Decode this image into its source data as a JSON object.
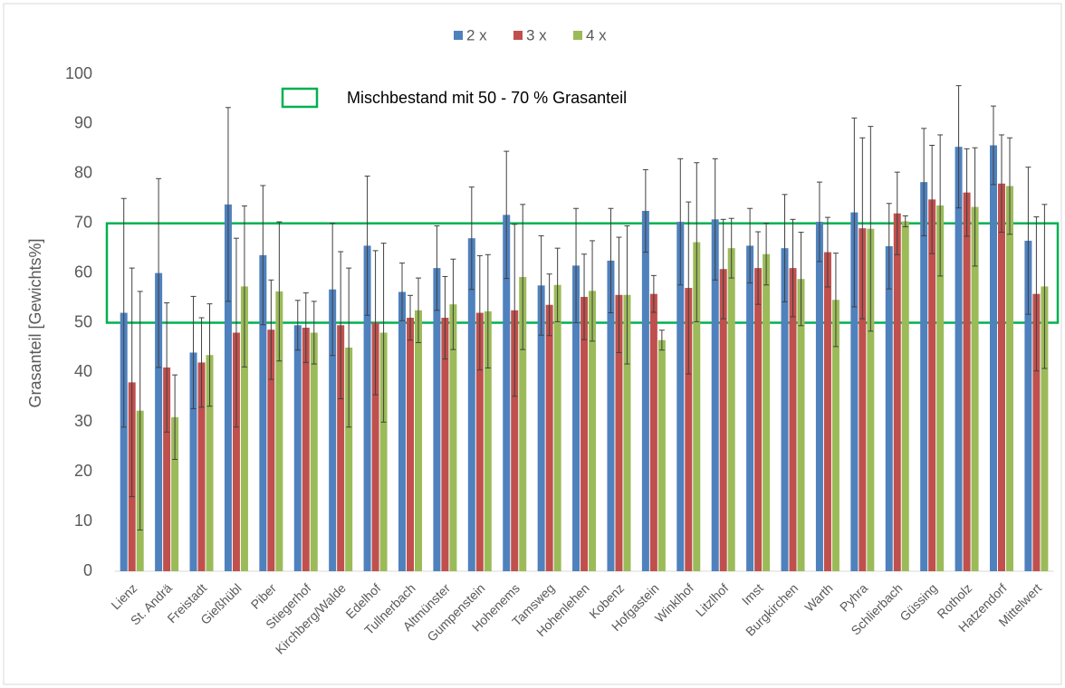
{
  "chart_data": {
    "type": "bar",
    "y_label": "Grasanteil [Gewichts%]",
    "categories": [
      "Lienz",
      "St. Andrä",
      "Freistadt",
      "Gießhübl",
      "Piber",
      "Stiegerhof",
      "Kirchberg/Walde",
      "Edelhof",
      "Tullnerbach",
      "Altmünster",
      "Gumpenstein",
      "Hohenems",
      "Tamsweg",
      "Hohenlehen",
      "Kobenz",
      "Hofgastein",
      "Winklhof",
      "Litzlhof",
      "Imst",
      "Burgkirchen",
      "Warth",
      "Pyhra",
      "Schlierbach",
      "Güssing",
      "Rotholz",
      "Hatzendorf",
      "Mittelwert"
    ],
    "series": [
      {
        "name": "2 x",
        "color": "#4f81bd",
        "values": [
          52,
          60,
          44,
          73.8,
          63.6,
          49.5,
          56.7,
          65.5,
          56.2,
          61,
          67,
          71.7,
          57.5,
          61.5,
          62.5,
          72.5,
          70.3,
          70.8,
          65.5,
          65,
          70.3,
          72.2,
          65.4,
          78.3,
          85.4,
          85.7,
          66.5
        ],
        "errors": [
          23,
          19,
          11.3,
          19.5,
          14,
          5,
          13.3,
          14,
          5.8,
          8.5,
          10.3,
          12.8,
          10,
          11.5,
          10.5,
          8.3,
          12.7,
          12.2,
          7.5,
          10.8,
          8,
          19,
          8.6,
          10.8,
          12.3,
          7.9,
          14.8
        ]
      },
      {
        "name": "3 x",
        "color": "#c0504d",
        "values": [
          38,
          41,
          42,
          48,
          48.6,
          49,
          49.5,
          50,
          51,
          51,
          52,
          52.5,
          53.6,
          55.2,
          55.6,
          55.8,
          57,
          60.8,
          61,
          61,
          64.2,
          69,
          72,
          74.8,
          76.2,
          78,
          55.8
        ],
        "errors": [
          23,
          13,
          9,
          19,
          10,
          7,
          14.8,
          14.5,
          4.5,
          8.3,
          11.5,
          17.3,
          6.2,
          8.6,
          11.6,
          3.7,
          17.3,
          10,
          7.3,
          9.8,
          7,
          18.2,
          8.3,
          10.9,
          8.8,
          9.8,
          15.5
        ]
      },
      {
        "name": "4 x",
        "color": "#9bbb59",
        "values": [
          32.3,
          31,
          43.5,
          57.3,
          56.3,
          48,
          45,
          48,
          52.5,
          53.7,
          52.3,
          59.2,
          57.6,
          56.4,
          55.6,
          46.5,
          66.2,
          65,
          63.8,
          58.8,
          54.6,
          68.9,
          70.4,
          73.6,
          73.3,
          77.5,
          57.3
        ],
        "errors": [
          24,
          8.5,
          10.3,
          16.2,
          14,
          6.3,
          16,
          18,
          6.5,
          9.1,
          11.4,
          14.6,
          7.4,
          10.1,
          13.9,
          2,
          16,
          6,
          6.2,
          9.4,
          9.4,
          20.6,
          1.1,
          14.2,
          11.9,
          9.7,
          16.5
        ]
      }
    ],
    "band": {
      "label": "Mischbestand mit 50 - 70 % Grasanteil",
      "range": [
        50,
        70
      ],
      "color": "#00b050"
    },
    "ylim": [
      0,
      100
    ],
    "yticks": [
      0,
      10,
      20,
      30,
      40,
      50,
      60,
      70,
      80,
      90,
      100
    ],
    "grid": false,
    "legend": "top"
  }
}
